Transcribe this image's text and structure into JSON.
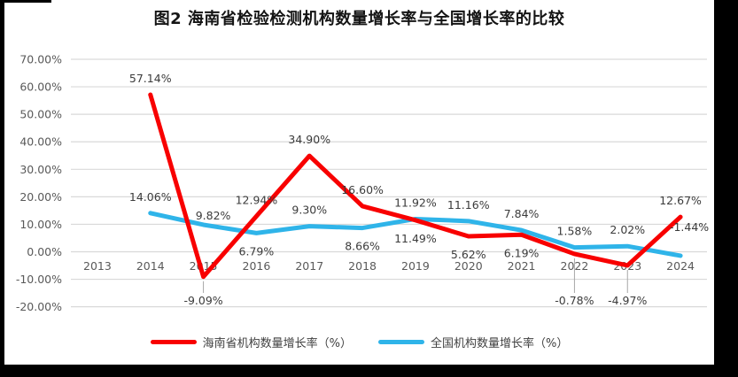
{
  "title": "图2 海南省检验检测机构数量增长率与全国增长率的比较",
  "colors": {
    "hainan": "#F80000",
    "national": "#2FB4E9",
    "grid": "#D9D9D9",
    "axis_text": "#595959",
    "data_label": "#3B3B3B",
    "leader": "#A6A6A6"
  },
  "chart_data": {
    "type": "line",
    "title": "图2 海南省检验检测机构数量增长率与全国增长率的比较",
    "categories": [
      "2013",
      "2014",
      "2015",
      "2016",
      "2017",
      "2018",
      "2019",
      "2020",
      "2021",
      "2022",
      "2023",
      "2024"
    ],
    "series": [
      {
        "name": "海南省机构数量增长率（%）",
        "color_key": "hainan",
        "values": [
          null,
          57.14,
          -9.09,
          12.94,
          34.9,
          16.6,
          11.49,
          5.62,
          6.19,
          -0.78,
          -4.97,
          12.67
        ]
      },
      {
        "name": "全国机构数量增长率（%）",
        "color_key": "national",
        "values": [
          null,
          14.06,
          9.82,
          6.79,
          9.3,
          8.66,
          11.92,
          11.16,
          7.84,
          1.58,
          2.02,
          -1.44
        ]
      }
    ],
    "y_tick_labels": [
      "70.00%",
      "60.00%",
      "50.00%",
      "40.00%",
      "30.00%",
      "20.00%",
      "10.00%",
      "0.00%",
      "-10.00%",
      "-20.00%"
    ],
    "ylim": [
      -20,
      70
    ],
    "grid": true,
    "legend_position": "bottom"
  }
}
